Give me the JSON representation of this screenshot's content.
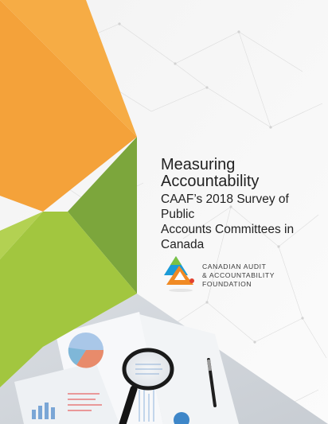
{
  "document": {
    "title_lines": [
      "Measuring",
      "Accountability"
    ],
    "subtitle_lines": [
      "CAAF’s 2018 Survey of Public",
      "Accounts Committees in",
      "Canada"
    ]
  },
  "organization": {
    "name_lines": [
      "CANADIAN AUDIT",
      "& ACCOUNTABILITY",
      "FOUNDATION"
    ]
  },
  "colors": {
    "orange": "#F4A23A",
    "green": "#9CC33E",
    "dark_green": "#7AA33A",
    "logo_blue": "#1B9BD7",
    "logo_orange": "#F08A24",
    "logo_green": "#7CC243",
    "logo_red": "#E2412F"
  },
  "icons": [
    "magnifying-glass-icon",
    "pen-icon",
    "caaf-logo-icon"
  ]
}
